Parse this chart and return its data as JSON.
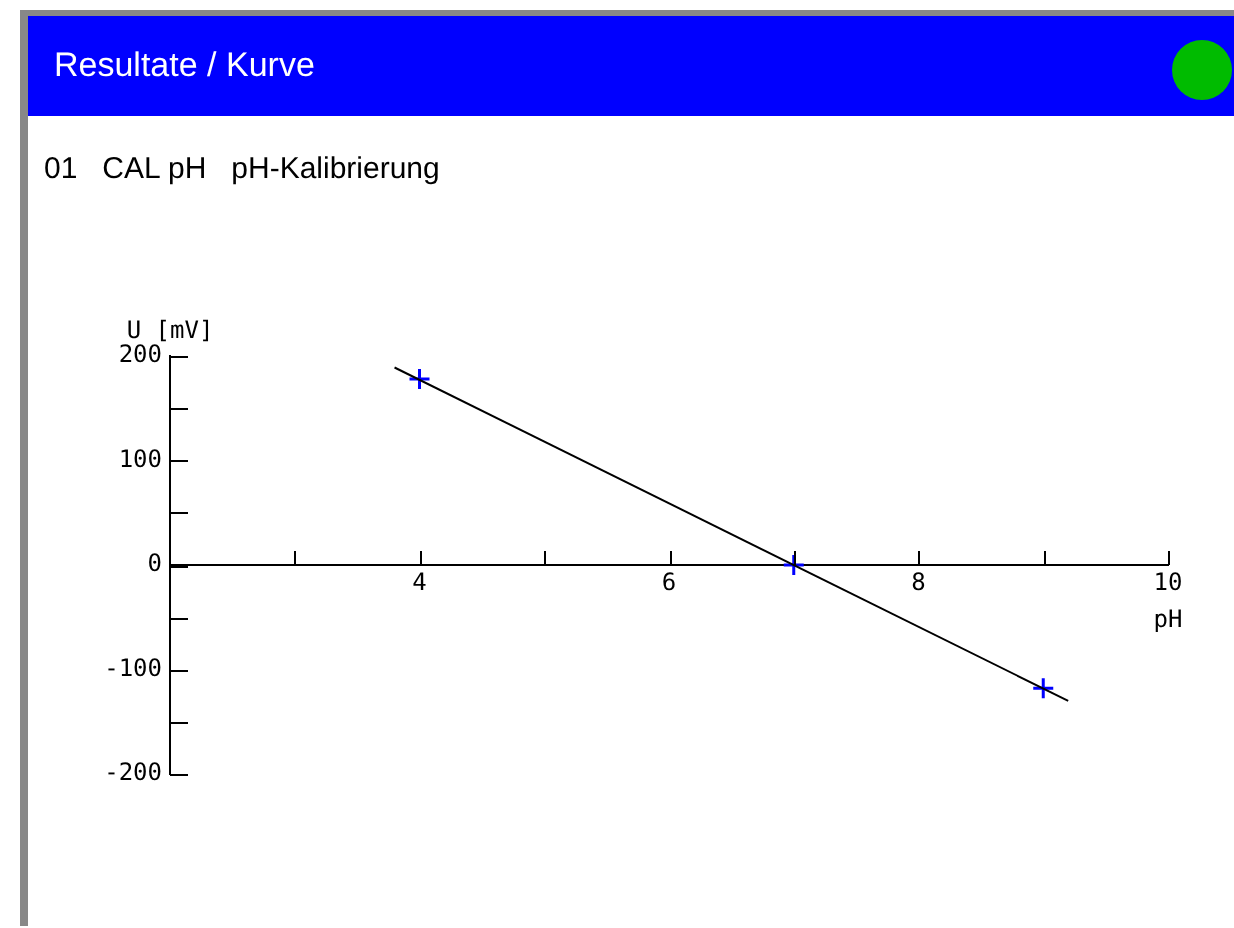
{
  "chart_data": {
    "type": "scatter",
    "title": "Resultate / Kurve",
    "subtitle": "01   CAL pH   pH-Kalibrierung",
    "xlabel": "pH",
    "ylabel": "U [mV]",
    "series": [
      {
        "type": "line",
        "color": "#000000",
        "marker": "none",
        "x": [
          3.8,
          9.2
        ],
        "values": [
          189,
          -130
        ]
      },
      {
        "color": "#0000ff",
        "marker": "cross",
        "x": [
          4,
          7,
          9
        ],
        "values": [
          178,
          0,
          -118
        ]
      }
    ],
    "xlim": [
      2,
      10
    ],
    "xticks": [
      {
        "value": 3,
        "label": null
      },
      4,
      {
        "value": 5,
        "label": null
      },
      6,
      {
        "value": 7,
        "label": null
      },
      8,
      {
        "value": 9,
        "label": null
      },
      10
    ],
    "ylim": [
      -200,
      200
    ],
    "yticks": [
      -200,
      {
        "value": -150,
        "label": null
      },
      -100,
      {
        "value": -50,
        "label": null
      },
      0,
      {
        "value": 50,
        "label": null
      },
      100,
      {
        "value": 150,
        "label": null
      },
      200
    ],
    "grid": false,
    "legend": false
  }
}
